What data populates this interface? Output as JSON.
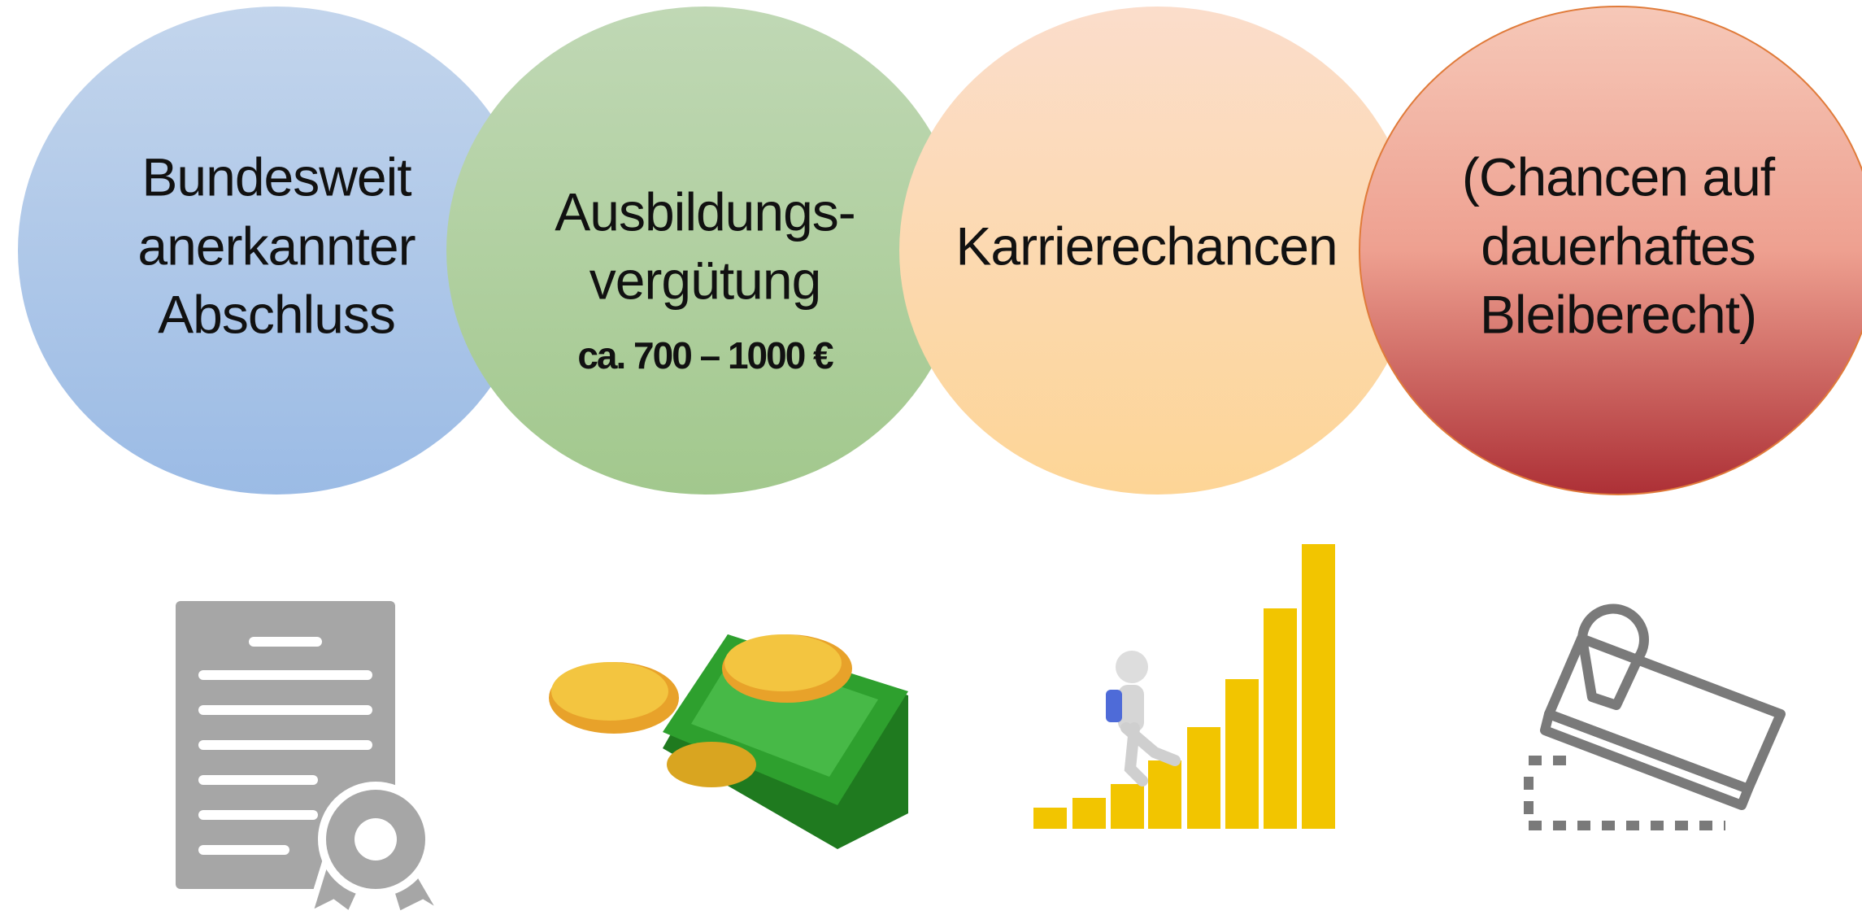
{
  "circles": [
    {
      "lines": [
        "Bundesweit",
        "anerkannter",
        "Abschluss"
      ]
    },
    {
      "lines": [
        "Ausbildungs-",
        "vergütung"
      ],
      "note": "ca. 700 – 1000 €"
    },
    {
      "lines": [
        "Karrierechancen"
      ]
    },
    {
      "lines": [
        "(Chancen auf",
        "dauerhaftes",
        "Bleiberecht)"
      ]
    }
  ]
}
